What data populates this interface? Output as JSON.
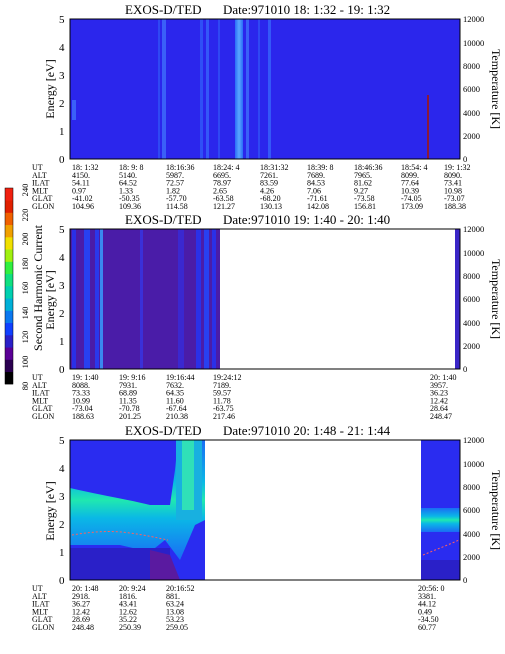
{
  "colorbar": {
    "label": "Second Harmonic Current",
    "ticks": [
      "80",
      "100",
      "120",
      "140",
      "160",
      "180",
      "200",
      "220",
      "240"
    ],
    "colors": [
      "#000000",
      "#2a0050",
      "#5a0096",
      "#2a20c8",
      "#1040ff",
      "#0a78f0",
      "#00b0d8",
      "#00d0b0",
      "#10e080",
      "#30f040",
      "#a0f010",
      "#f0e000",
      "#f0a000",
      "#f06000",
      "#e02000",
      "#f02010"
    ]
  },
  "ephemeris_labels": [
    "UT",
    "ALT",
    "ILAT",
    "MLT",
    "GLAT",
    "GLON"
  ],
  "panels": [
    {
      "title": "EXOS-D/TED",
      "date": "Date:971010 18: 1:32 - 19: 1:32",
      "ylabel": "Energy [eV]",
      "rlabel": "Temperature [K]",
      "yticks": [
        "0",
        "1",
        "2",
        "3",
        "4",
        "5"
      ],
      "rticks": [
        "0",
        "2000",
        "4000",
        "6000",
        "8000",
        "10000",
        "12000"
      ],
      "ephemeris": [
        [
          "18: 1:32",
          "4150.",
          "54.11",
          "0.97",
          "-41.02",
          "104.96"
        ],
        [
          "18: 9: 8",
          "5140.",
          "64.52",
          "1.33",
          "-50.35",
          "109.36"
        ],
        [
          "18:16:36",
          "5987.",
          "72.57",
          "1.82",
          "-57.70",
          "114.58"
        ],
        [
          "18:24: 4",
          "6695.",
          "78.97",
          "2.65",
          "-63.58",
          "121.27"
        ],
        [
          "18:31:32",
          "7261.",
          "83.59",
          "4.26",
          "-68.20",
          "130.13"
        ],
        [
          "18:39: 8",
          "7689.",
          "84.53",
          "7.06",
          "-71.61",
          "142.08"
        ],
        [
          "18:46:36",
          "7965.",
          "81.62",
          "9.27",
          "-73.58",
          "156.81"
        ],
        [
          "18:54: 4",
          "8099.",
          "77.64",
          "10.39",
          "-74.05",
          "173.09"
        ],
        [
          "19: 1:32",
          "8090.",
          "73.41",
          "10.98",
          "-73.07",
          "188.38"
        ]
      ]
    },
    {
      "title": "EXOS-D/TED",
      "date": "Date:971010 19: 1:40 - 20: 1:40",
      "ylabel": "Energy [eV]",
      "rlabel": "Temperature [K]",
      "yticks": [
        "0",
        "1",
        "2",
        "3",
        "4",
        "5"
      ],
      "rticks": [
        "0",
        "2000",
        "4000",
        "6000",
        "8000",
        "10000",
        "12000"
      ],
      "ephemeris": [
        [
          "19: 1:40",
          "8088.",
          "73.33",
          "10.99",
          "-73.04",
          "188.63"
        ],
        [
          "19: 9:16",
          "7931.",
          "68.89",
          "11.35",
          "-70.78",
          "201.25"
        ],
        [
          "19:16:44",
          "7632.",
          "64.35",
          "11.60",
          "-67.64",
          "210.38"
        ],
        [
          "19:24:12",
          "7189.",
          "59.57",
          "11.78",
          "-63.75",
          "217.46"
        ],
        [
          "20: 1:40",
          "3957.",
          "36.23",
          "12.42",
          "28.64",
          "248.47"
        ]
      ]
    },
    {
      "title": "EXOS-D/TED",
      "date": "Date:971010 20: 1:48 - 21: 1:44",
      "ylabel": "Energy [eV]",
      "rlabel": "Temperature [K]",
      "yticks": [
        "0",
        "1",
        "2",
        "3",
        "4",
        "5"
      ],
      "rticks": [
        "0",
        "2000",
        "4000",
        "6000",
        "8000",
        "10000",
        "12000"
      ],
      "ephemeris": [
        [
          "20: 1:48",
          "2918.",
          "36.27",
          "12.42",
          "28.69",
          "248.48"
        ],
        [
          "20: 9:24",
          "1816.",
          "43.41",
          "12.62",
          "35.22",
          "250.39"
        ],
        [
          "20:16:52",
          "881.",
          "63.24",
          "13.08",
          "53.23",
          "259.05"
        ],
        [
          "20:56: 0",
          "3381.",
          "44.12",
          "0.49",
          "-34.50",
          "60.77"
        ]
      ]
    }
  ],
  "chart_data": [
    {
      "type": "heatmap",
      "title": "EXOS-D/TED",
      "subtitle": "Date:971010 18: 1:32 - 19: 1:32",
      "ylabel": "Energy [eV]",
      "y2label": "Temperature [K]",
      "ylim": [
        0,
        5
      ],
      "y2lim": [
        0,
        12000
      ],
      "x_ticks": [
        "18: 1:32",
        "18: 9: 8",
        "18:16:36",
        "18:24: 4",
        "18:31:32",
        "18:39: 8",
        "18:46:36",
        "18:54: 4",
        "19: 1:32"
      ],
      "data_coverage": [
        [
          0,
          1
        ]
      ]
    },
    {
      "type": "heatmap",
      "title": "EXOS-D/TED",
      "subtitle": "Date:971010 19: 1:40 - 20: 1:40",
      "ylabel": "Energy [eV]",
      "y2label": "Temperature [K]",
      "ylim": [
        0,
        5
      ],
      "y2lim": [
        0,
        12000
      ],
      "x_ticks": [
        "19: 1:40",
        "19: 9:16",
        "19:16:44",
        "19:24:12",
        "20: 1:40"
      ],
      "data_coverage": [
        [
          0,
          0.39
        ]
      ]
    },
    {
      "type": "heatmap",
      "title": "EXOS-D/TED",
      "subtitle": "Date:971010 20: 1:48 - 21: 1:44",
      "ylabel": "Energy [eV]",
      "y2label": "Temperature [K]",
      "ylim": [
        0,
        5
      ],
      "y2lim": [
        0,
        12000
      ],
      "x_ticks": [
        "20: 1:48",
        "20: 9:24",
        "20:16:52",
        "20:56: 0"
      ],
      "data_coverage": [
        [
          0,
          0.34
        ],
        [
          0.89,
          1
        ]
      ]
    }
  ]
}
